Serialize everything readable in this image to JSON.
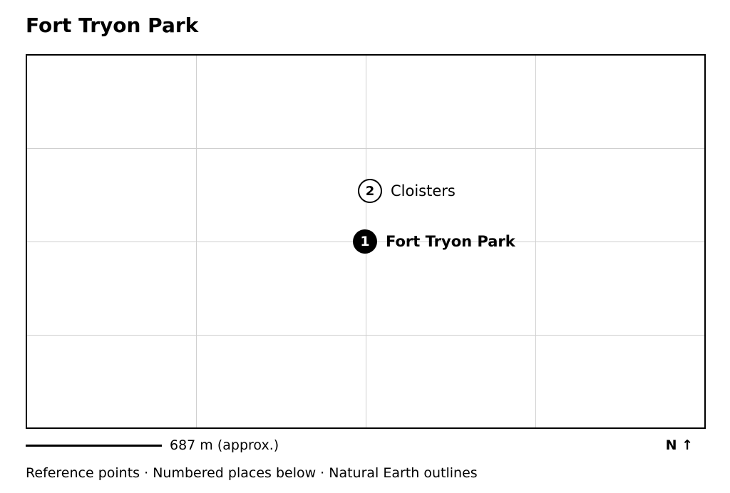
{
  "map": {
    "title": "Fort Tryon Park",
    "places": [
      {
        "number": "1",
        "name": "Fort Tryon Park",
        "style": "primary"
      },
      {
        "number": "2",
        "name": "Cloisters",
        "style": "secondary"
      }
    ],
    "scale_label": "687 m (approx.)",
    "north_label": "N ↑",
    "caption": "Reference points · Numbered places below · Natural Earth outlines",
    "grid": true,
    "colors": {
      "frame": "#000000",
      "grid": "#cfcfcf",
      "marker_primary": "#000000",
      "marker_secondary_fill": "#ffffff"
    }
  }
}
